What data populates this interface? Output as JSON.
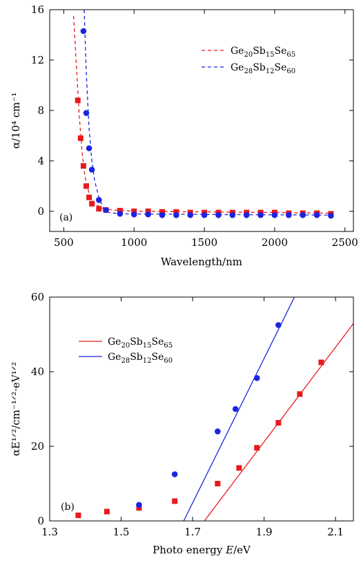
{
  "chart_data": [
    {
      "type": "scatter",
      "panel_label": "(a)",
      "xlabel": "Wavelength/nm",
      "ylabel": "α/10⁴ cm⁻¹",
      "xlim": [
        400,
        2560
      ],
      "ylim": [
        -1.6,
        16
      ],
      "xticks": [
        500,
        1000,
        1500,
        2000,
        2500
      ],
      "yticks": [
        0,
        4,
        8,
        12,
        16
      ],
      "legend": "top-right",
      "series": [
        {
          "name": "Ge20Sb15Se65",
          "name_parts": {
            "base1": "Ge",
            "sub1": "20",
            "base2": "Sb",
            "sub2": "15",
            "base3": "Se",
            "sub3": "65"
          },
          "color": "#e8191e",
          "marker": "square",
          "points": [
            [
              600,
              8.8
            ],
            [
              620,
              5.8
            ],
            [
              640,
              3.6
            ],
            [
              660,
              2.0
            ],
            [
              680,
              1.1
            ],
            [
              700,
              0.6
            ],
            [
              750,
              0.2
            ],
            [
              800,
              0.1
            ],
            [
              900,
              0.05
            ],
            [
              1000,
              0.0
            ],
            [
              1100,
              0.0
            ],
            [
              1200,
              -0.05
            ],
            [
              1300,
              -0.05
            ],
            [
              1400,
              -0.1
            ],
            [
              1500,
              -0.1
            ],
            [
              1600,
              -0.1
            ],
            [
              1700,
              -0.1
            ],
            [
              1800,
              -0.1
            ],
            [
              1900,
              -0.1
            ],
            [
              2000,
              -0.1
            ],
            [
              2100,
              -0.15
            ],
            [
              2200,
              -0.15
            ],
            [
              2300,
              -0.15
            ],
            [
              2400,
              -0.2
            ]
          ],
          "fit": [
            [
              570,
              15.5
            ],
            [
              590,
              11.5
            ],
            [
              610,
              7.6
            ],
            [
              630,
              4.7
            ],
            [
              650,
              2.8
            ],
            [
              680,
              1.4
            ],
            [
              720,
              0.6
            ],
            [
              780,
              0.2
            ],
            [
              850,
              0.1
            ],
            [
              1000,
              0.0
            ],
            [
              1500,
              -0.05
            ],
            [
              2000,
              -0.1
            ],
            [
              2400,
              -0.15
            ]
          ]
        },
        {
          "name": "Ge28Sb12Se60",
          "name_parts": {
            "base1": "Ge",
            "sub1": "28",
            "base2": "Sb",
            "sub2": "12",
            "base3": "Se",
            "sub3": "60"
          },
          "color": "#1b24e0",
          "marker": "circle",
          "points": [
            [
              640,
              14.3
            ],
            [
              660,
              7.8
            ],
            [
              680,
              5.0
            ],
            [
              700,
              3.3
            ],
            [
              750,
              0.9
            ],
            [
              800,
              0.1
            ],
            [
              900,
              -0.2
            ],
            [
              1000,
              -0.25
            ],
            [
              1100,
              -0.25
            ],
            [
              1200,
              -0.3
            ],
            [
              1300,
              -0.3
            ],
            [
              1400,
              -0.3
            ],
            [
              1500,
              -0.3
            ],
            [
              1600,
              -0.3
            ],
            [
              1700,
              -0.3
            ],
            [
              1800,
              -0.3
            ],
            [
              1900,
              -0.3
            ],
            [
              2000,
              -0.3
            ],
            [
              2100,
              -0.3
            ],
            [
              2200,
              -0.3
            ],
            [
              2300,
              -0.3
            ],
            [
              2400,
              -0.35
            ]
          ],
          "fit": [
            [
              645,
              16.0
            ],
            [
              660,
              11.0
            ],
            [
              680,
              6.6
            ],
            [
              700,
              4.0
            ],
            [
              720,
              2.4
            ],
            [
              750,
              1.1
            ],
            [
              780,
              0.3
            ],
            [
              820,
              -0.1
            ],
            [
              900,
              -0.2
            ],
            [
              1500,
              -0.25
            ],
            [
              2400,
              -0.3
            ]
          ]
        }
      ]
    },
    {
      "type": "scatter",
      "panel_label": "(b)",
      "xlabel_prefix": "Photo energy ",
      "xlabel_var": "E",
      "xlabel_unit": "/eV",
      "ylabel": "αE¹ᐟ²/cm⁻¹ᐟ²·eV¹ᐟ²",
      "xlim": [
        1.3,
        2.15
      ],
      "ylim": [
        0,
        60
      ],
      "xticks": [
        1.3,
        1.5,
        1.7,
        1.9,
        2.1
      ],
      "yticks": [
        0,
        20,
        40,
        60
      ],
      "legend": "top-left",
      "series": [
        {
          "name": "Ge20Sb15Se65",
          "name_parts": {
            "base1": "Ge",
            "sub1": "20",
            "base2": "Sb",
            "sub2": "15",
            "base3": "Se",
            "sub3": "65"
          },
          "color": "#e8191e",
          "marker": "square",
          "points": [
            [
              1.38,
              1.5
            ],
            [
              1.46,
              2.5
            ],
            [
              1.55,
              3.5
            ],
            [
              1.65,
              5.3
            ],
            [
              1.77,
              10.0
            ],
            [
              1.83,
              14.2
            ],
            [
              1.88,
              19.6
            ],
            [
              1.94,
              26.3
            ],
            [
              2.0,
              34.0
            ],
            [
              2.06,
              42.5
            ]
          ],
          "fit": [
            [
              1.733,
              0
            ],
            [
              2.15,
              52.9
            ]
          ]
        },
        {
          "name": "Ge28Sb12Se60",
          "name_parts": {
            "base1": "Ge",
            "sub1": "28",
            "base2": "Sb",
            "sub2": "12",
            "base3": "Se",
            "sub3": "60"
          },
          "color": "#1b24e0",
          "marker": "circle",
          "points": [
            [
              1.55,
              4.3
            ],
            [
              1.65,
              12.5
            ],
            [
              1.77,
              24.0
            ],
            [
              1.82,
              30.0
            ],
            [
              1.88,
              38.3
            ],
            [
              1.94,
              52.5
            ]
          ],
          "fit": [
            [
              1.675,
              0
            ],
            [
              1.985,
              60
            ]
          ]
        }
      ]
    }
  ]
}
